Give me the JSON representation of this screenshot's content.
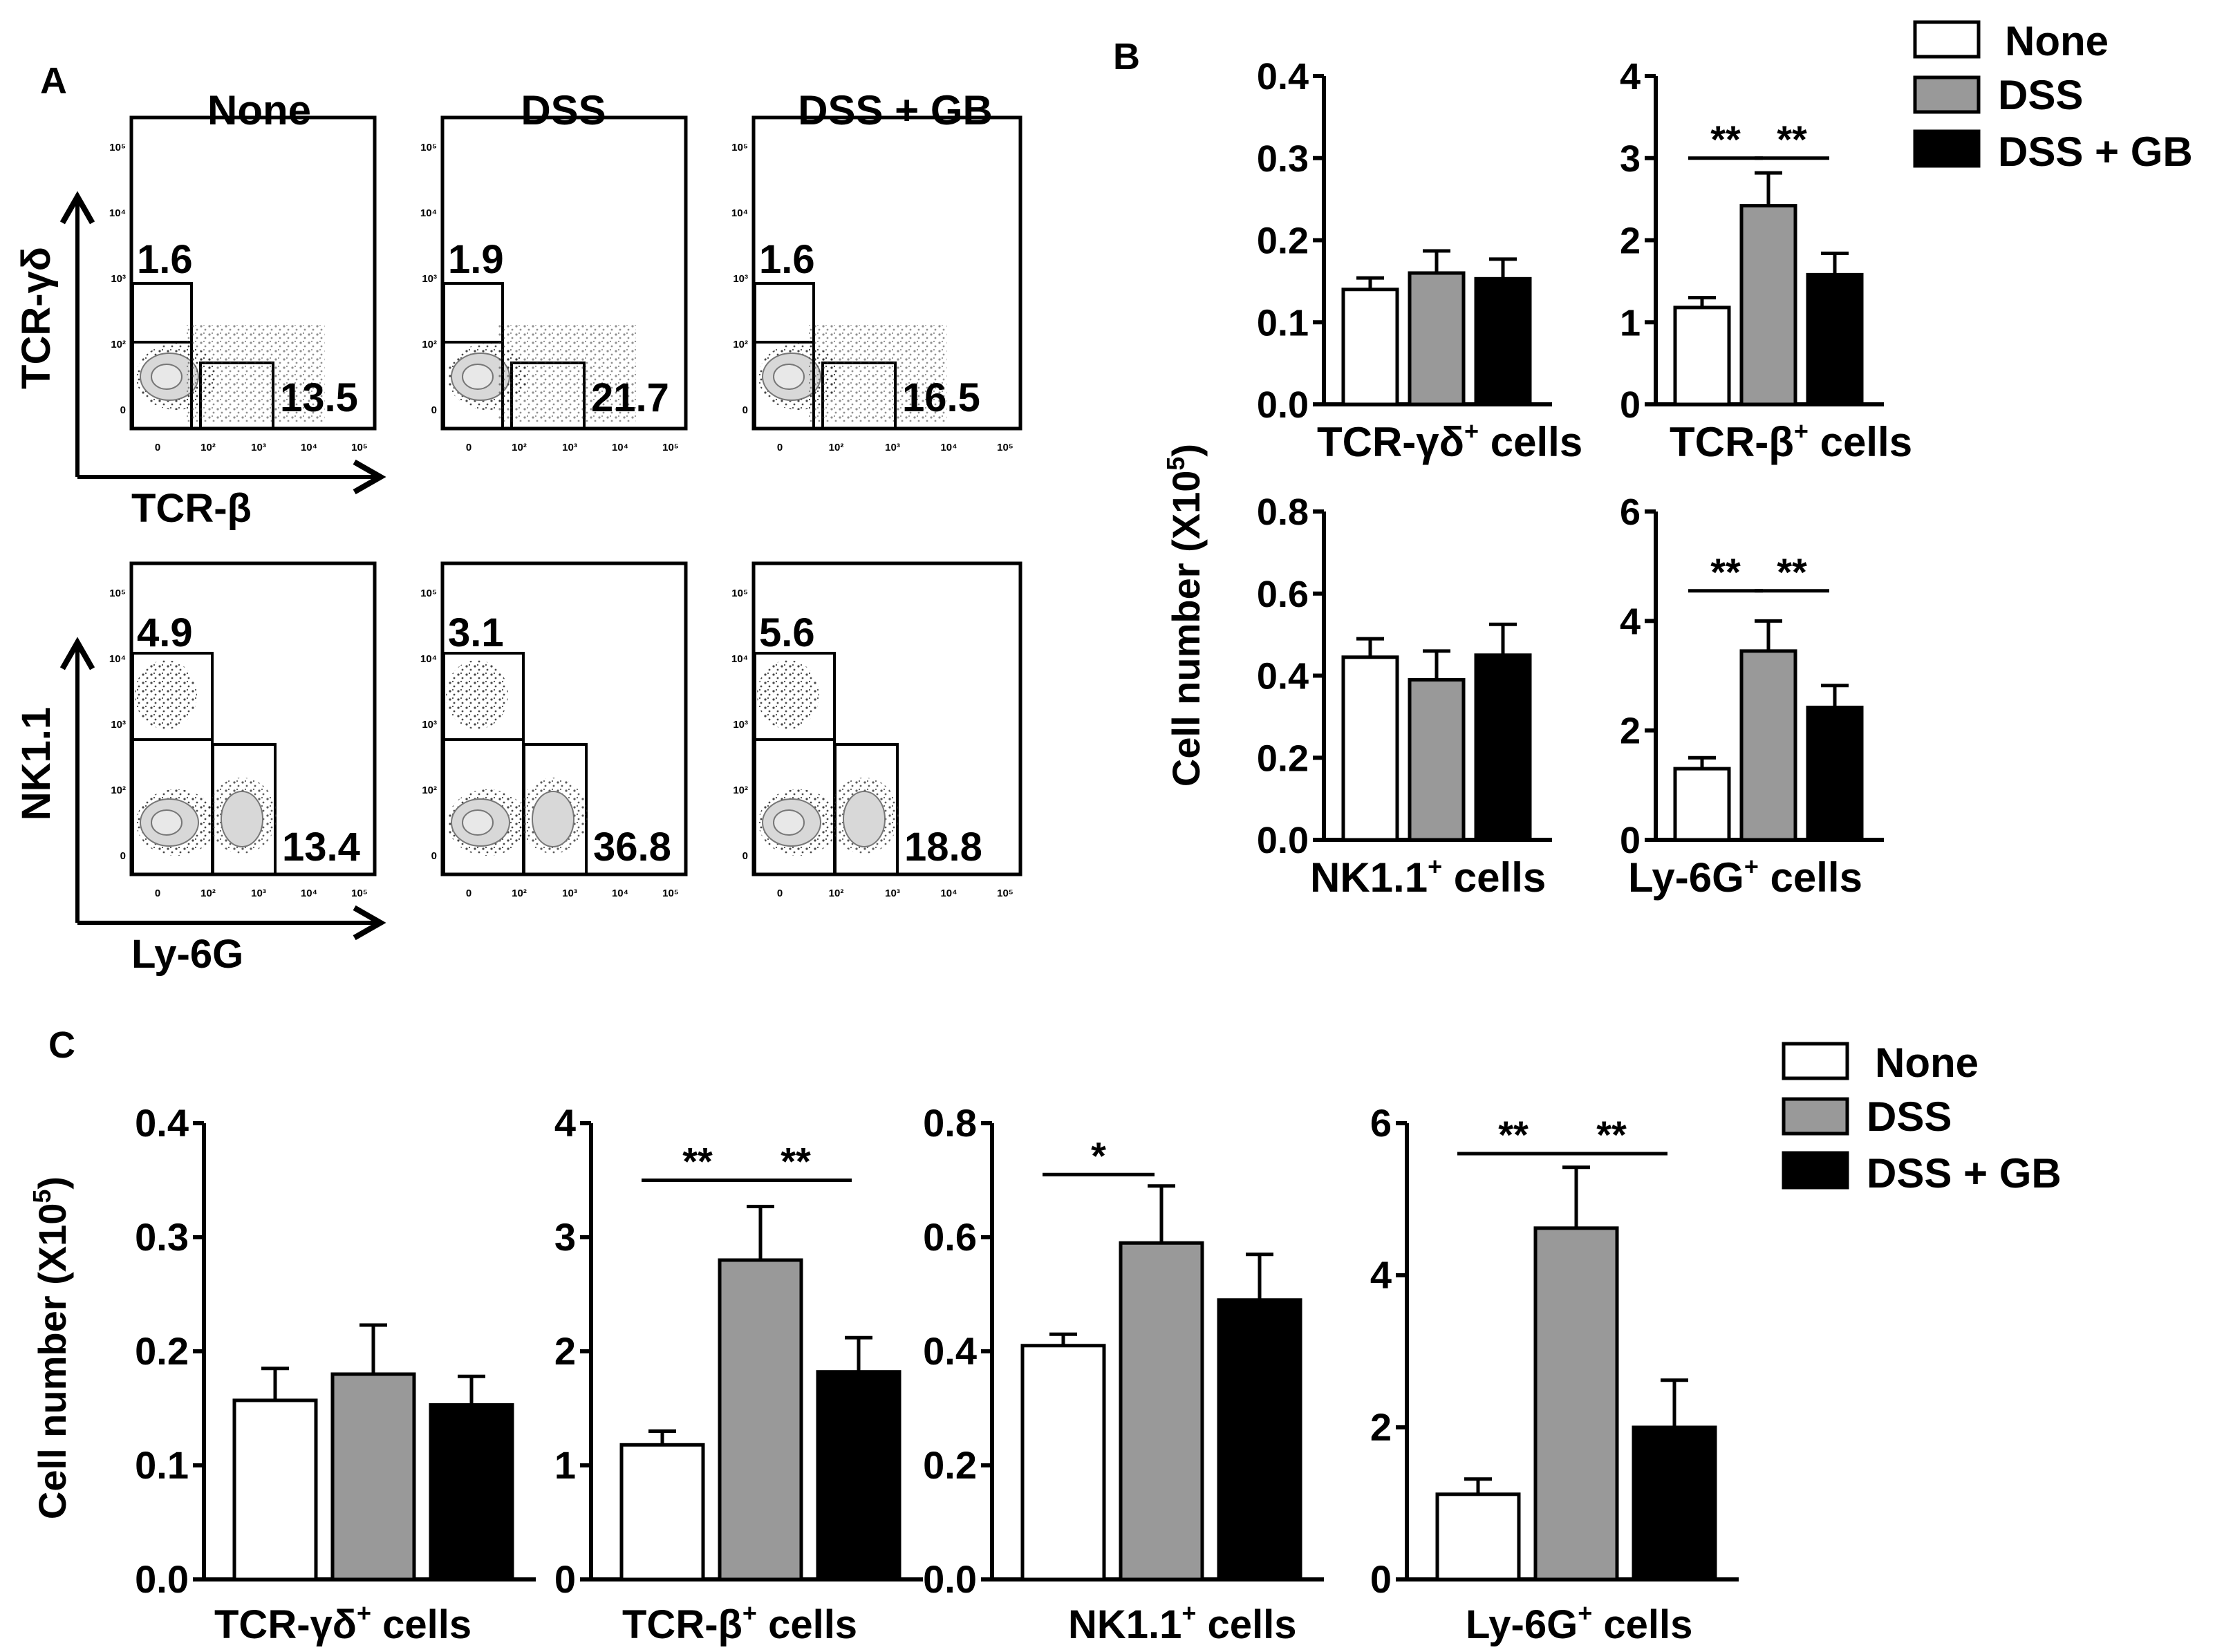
{
  "panel_letters": {
    "a": "A",
    "b": "B",
    "c": "C"
  },
  "colors": {
    "None": "#ffffff",
    "DSS": "#999999",
    "DSS + GB": "#000000",
    "axis": "#000000",
    "flow_dots": "#333333",
    "flow_contour": "#d8d8d8"
  },
  "legend": {
    "items": [
      "None",
      "DSS",
      "DSS + GB"
    ]
  },
  "ylabel": "Cell number (X10",
  "ylabel_sup": "5",
  "ylabel_end": ")",
  "panel_a": {
    "conditions": [
      "None",
      "DSS",
      "DSS + GB"
    ],
    "rows": [
      {
        "y_axis": "TCR-γδ",
        "x_axis": "TCR-β",
        "upper_gate": [
          "1.6",
          "1.9",
          "1.6"
        ],
        "lower_gate": [
          "13.5",
          "21.7",
          "16.5"
        ]
      },
      {
        "y_axis": "NK1.1",
        "x_axis": "Ly-6G",
        "upper_gate": [
          "4.9",
          "3.1",
          "5.6"
        ],
        "lower_gate": [
          "13.4",
          "36.8",
          "18.8"
        ]
      }
    ],
    "x_ticks": [
      "0",
      "10²",
      "10³",
      "10⁴",
      "10⁵"
    ],
    "y_ticks": [
      "10⁵",
      "10⁴",
      "10³",
      "10²",
      "0"
    ]
  },
  "chart_data": [
    {
      "panel": "B",
      "type": "bar",
      "title": "",
      "xlabel": "TCR-γδ",
      "xlabel_sup": "+",
      "xlabel_suffix": " cells",
      "categories": [
        "None",
        "DSS",
        "DSS + GB"
      ],
      "values": [
        0.14,
        0.16,
        0.153
      ],
      "errors": [
        0.014,
        0.027,
        0.024
      ],
      "ylim": [
        0,
        0.4
      ],
      "yticks": [
        "0.0",
        "0.1",
        "0.2",
        "0.3",
        "0.4"
      ],
      "significance": []
    },
    {
      "panel": "B",
      "type": "bar",
      "title": "",
      "xlabel": "TCR-β",
      "xlabel_sup": "+",
      "xlabel_suffix": " cells",
      "categories": [
        "None",
        "DSS",
        "DSS + GB"
      ],
      "values": [
        1.18,
        2.42,
        1.58
      ],
      "errors": [
        0.12,
        0.4,
        0.26
      ],
      "ylim": [
        0,
        4
      ],
      "yticks": [
        "0",
        "1",
        "2",
        "3",
        "4"
      ],
      "significance": [
        {
          "from": 0,
          "to": 1,
          "label": "**",
          "at": 3.0
        },
        {
          "from": 1,
          "to": 2,
          "label": "**",
          "at": 3.0
        }
      ]
    },
    {
      "panel": "B",
      "type": "bar",
      "title": "",
      "xlabel": "NK1.1",
      "xlabel_sup": "+",
      "xlabel_suffix": " cells",
      "categories": [
        "None",
        "DSS",
        "DSS + GB"
      ],
      "values": [
        0.445,
        0.39,
        0.45
      ],
      "errors": [
        0.045,
        0.07,
        0.075
      ],
      "ylim": [
        0,
        0.8
      ],
      "yticks": [
        "0.0",
        "0.2",
        "0.4",
        "0.6",
        "0.8"
      ],
      "significance": []
    },
    {
      "panel": "B",
      "type": "bar",
      "title": "",
      "xlabel": "Ly-6G",
      "xlabel_sup": "+",
      "xlabel_suffix": " cells",
      "categories": [
        "None",
        "DSS",
        "DSS + GB"
      ],
      "values": [
        1.3,
        3.45,
        2.42
      ],
      "errors": [
        0.2,
        0.55,
        0.4
      ],
      "ylim": [
        0,
        6
      ],
      "yticks": [
        "0",
        "2",
        "4",
        "6"
      ],
      "significance": [
        {
          "from": 0,
          "to": 1,
          "label": "**",
          "at": 4.55
        },
        {
          "from": 1,
          "to": 2,
          "label": "**",
          "at": 4.55
        }
      ]
    },
    {
      "panel": "C",
      "type": "bar",
      "title": "",
      "xlabel": "TCR-γδ",
      "xlabel_sup": "+",
      "xlabel_suffix": " cells",
      "categories": [
        "None",
        "DSS",
        "DSS + GB"
      ],
      "values": [
        0.157,
        0.18,
        0.153
      ],
      "errors": [
        0.028,
        0.043,
        0.025
      ],
      "ylim": [
        0,
        0.4
      ],
      "yticks": [
        "0.0",
        "0.1",
        "0.2",
        "0.3",
        "0.4"
      ],
      "significance": []
    },
    {
      "panel": "C",
      "type": "bar",
      "title": "",
      "xlabel": "TCR-β",
      "xlabel_sup": "+",
      "xlabel_suffix": " cells",
      "categories": [
        "None",
        "DSS",
        "DSS + GB"
      ],
      "values": [
        1.18,
        2.8,
        1.82
      ],
      "errors": [
        0.12,
        0.47,
        0.3
      ],
      "ylim": [
        0,
        4
      ],
      "yticks": [
        "0",
        "1",
        "2",
        "3",
        "4"
      ],
      "significance": [
        {
          "from": 0,
          "to": 1,
          "label": "**",
          "at": 3.5
        },
        {
          "from": 1,
          "to": 2,
          "label": "**",
          "at": 3.5
        }
      ]
    },
    {
      "panel": "C",
      "type": "bar",
      "title": "",
      "xlabel": "NK1.1",
      "xlabel_sup": "+",
      "xlabel_suffix": " cells",
      "categories": [
        "None",
        "DSS",
        "DSS + GB"
      ],
      "values": [
        0.41,
        0.59,
        0.49
      ],
      "errors": [
        0.02,
        0.1,
        0.08
      ],
      "ylim": [
        0,
        0.8
      ],
      "yticks": [
        "0.0",
        "0.2",
        "0.4",
        "0.6",
        "0.8"
      ],
      "significance": [
        {
          "from": 0,
          "to": 1,
          "label": "*",
          "at": 0.71
        }
      ]
    },
    {
      "panel": "C",
      "type": "bar",
      "title": "",
      "xlabel": "Ly-6G",
      "xlabel_sup": "+",
      "xlabel_suffix": " cells",
      "categories": [
        "None",
        "DSS",
        "DSS + GB"
      ],
      "values": [
        1.12,
        4.62,
        2.0
      ],
      "errors": [
        0.2,
        0.8,
        0.62
      ],
      "ylim": [
        0,
        6
      ],
      "yticks": [
        "0",
        "2",
        "4",
        "6"
      ],
      "significance": [
        {
          "from": 0,
          "to": 1,
          "label": "**",
          "at": 5.6
        },
        {
          "from": 1,
          "to": 2,
          "label": "**",
          "at": 5.6
        }
      ]
    }
  ]
}
